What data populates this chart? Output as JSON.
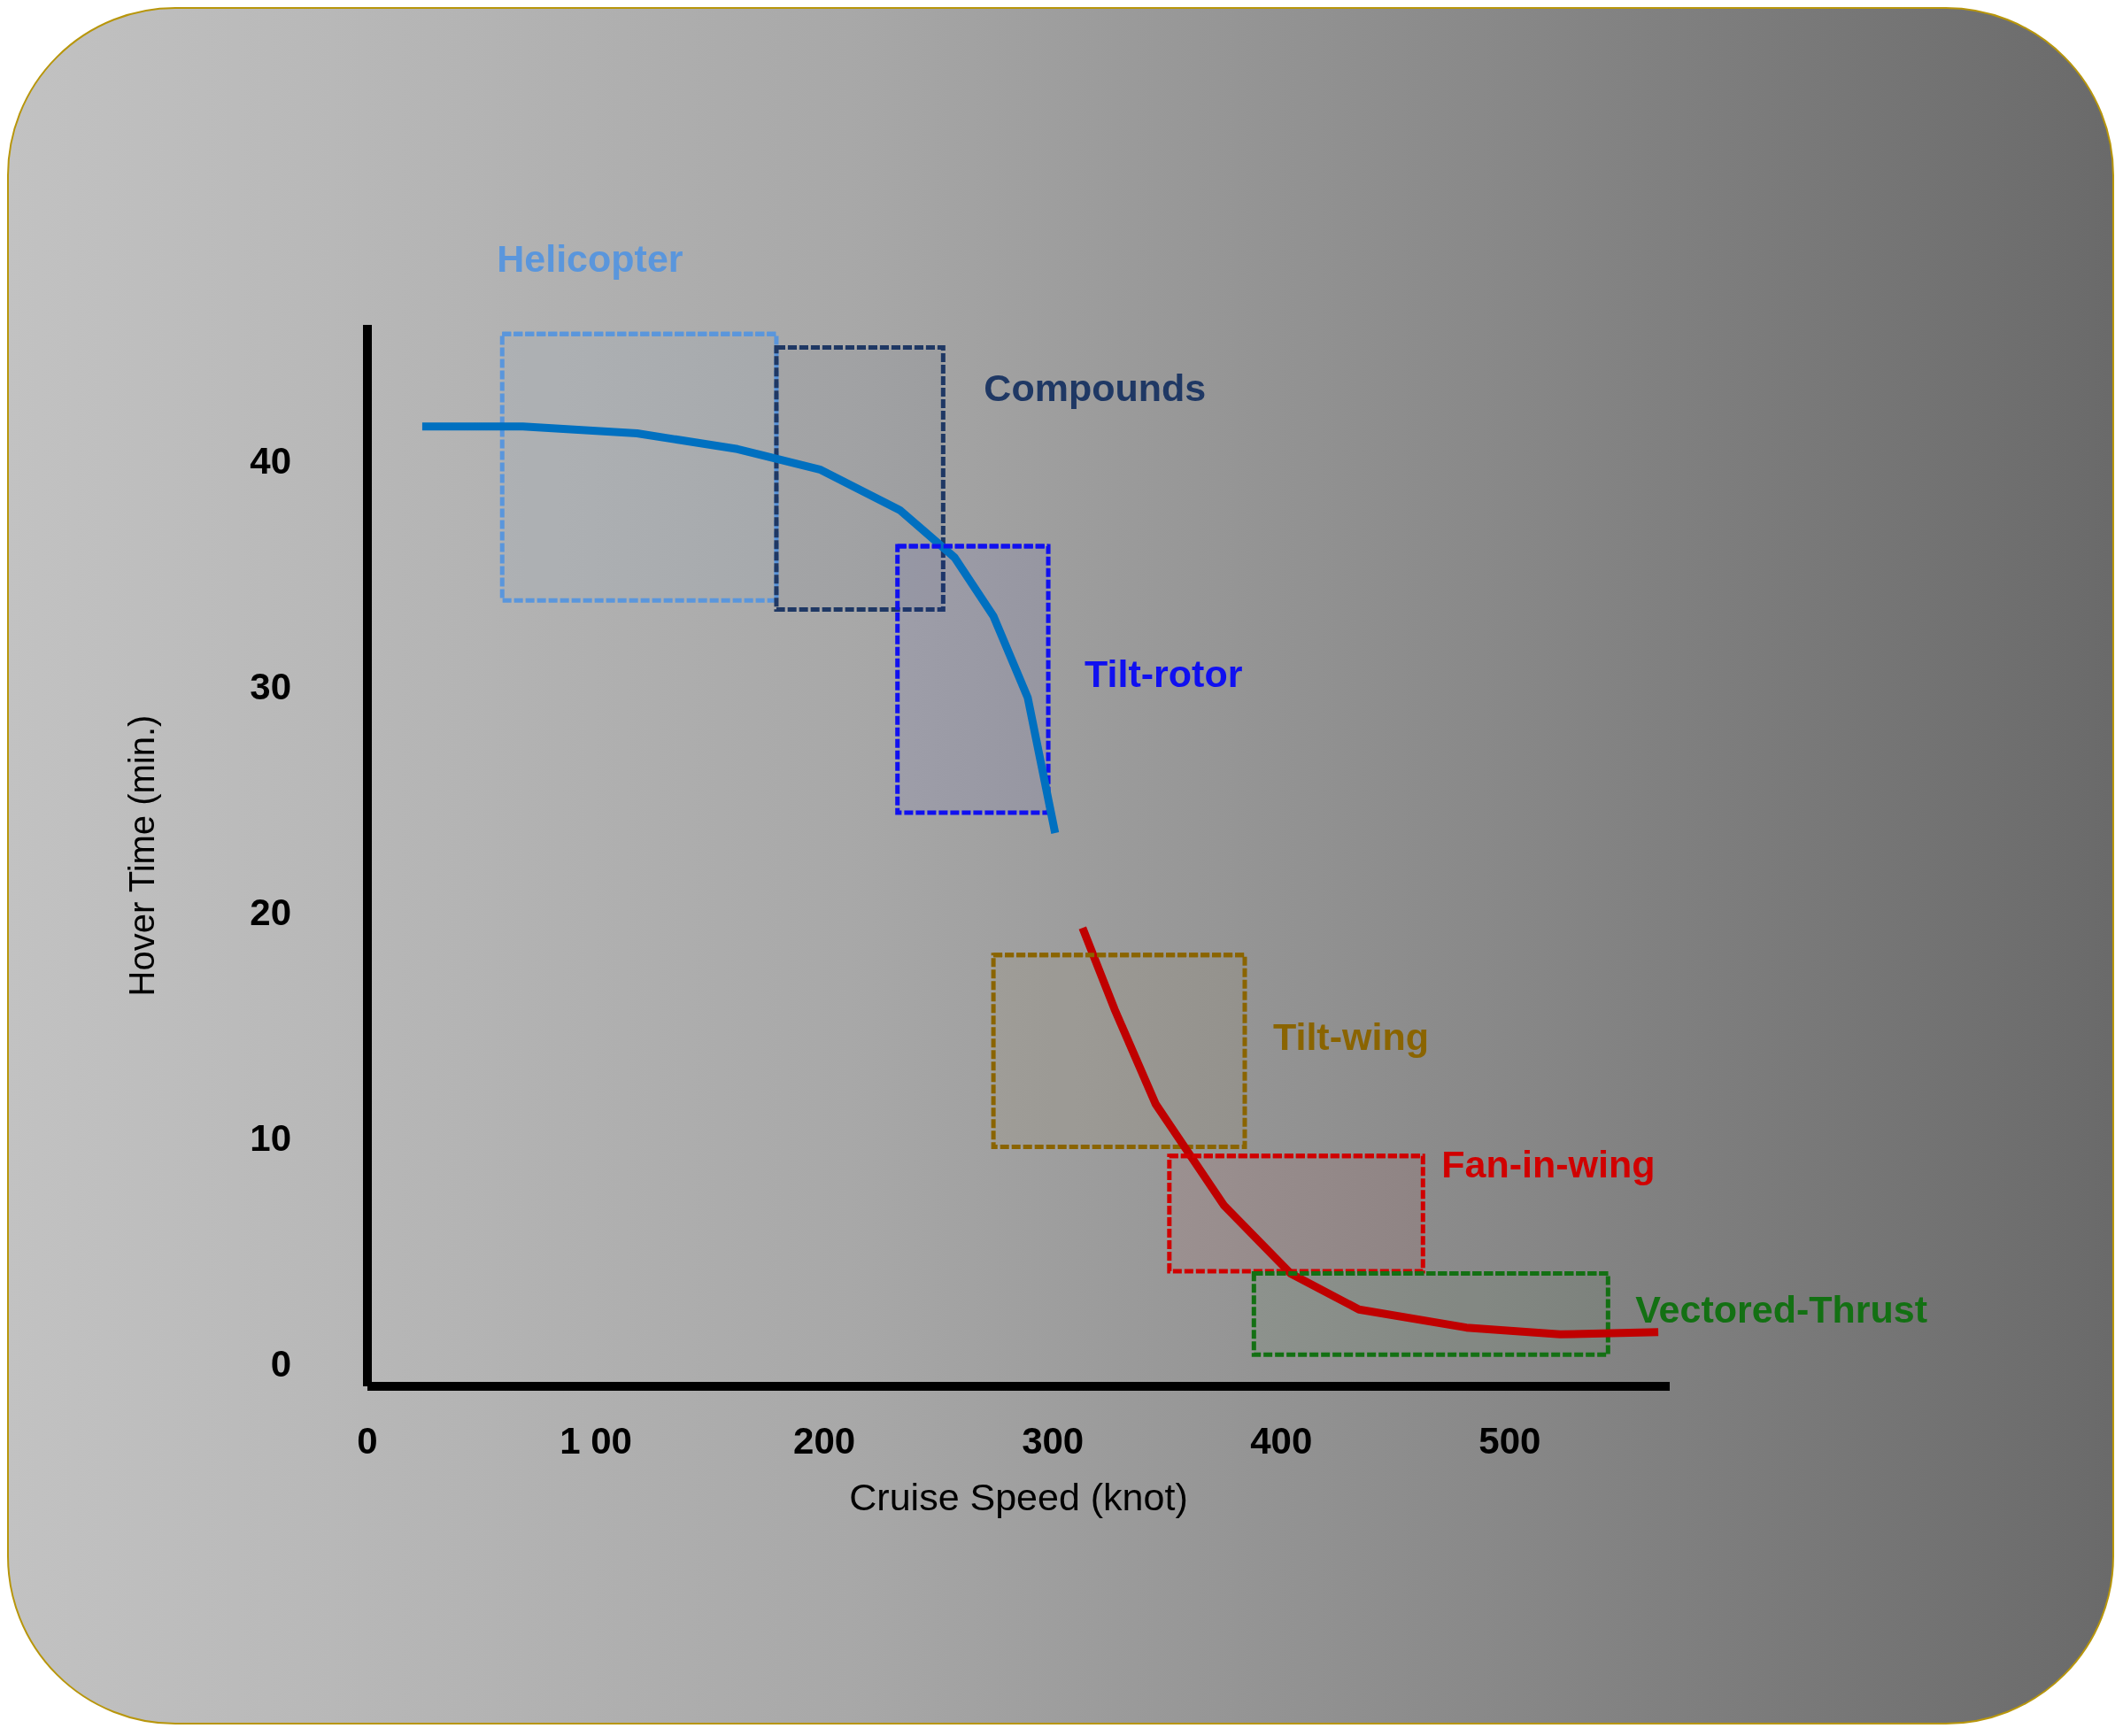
{
  "chart_data": {
    "type": "line",
    "xlabel": "Cruise Speed (knot)",
    "ylabel": "Hover Time (min.)",
    "xlim": [
      0,
      570
    ],
    "ylim": [
      -1,
      46
    ],
    "xticks": [
      0,
      {
        "value": 100,
        "label": "1 00"
      },
      200,
      300,
      400,
      500
    ],
    "yticks": [
      0,
      10,
      20,
      30,
      40
    ],
    "grid": false,
    "legend": false,
    "series": [
      {
        "type": "line",
        "color": "#0070c0",
        "line_style": "solid",
        "x": [
          24,
          68,
          118,
          162,
          198,
          233,
          257,
          274,
          289,
          301
        ],
        "values": [
          41.5,
          41.5,
          41.2,
          40.5,
          39.6,
          37.8,
          35.7,
          33.1,
          29.5,
          23.5
        ]
      },
      {
        "type": "line",
        "color": "#c00000",
        "line_style": "solid",
        "x": [
          313,
          327,
          345,
          375,
          404,
          434,
          481,
          522,
          565
        ],
        "values": [
          19.3,
          15.7,
          11.5,
          7.0,
          4.0,
          2.4,
          1.6,
          1.3,
          1.4
        ]
      },
      {
        "type": "line",
        "name": "Helicopter",
        "color": "#5a96dc",
        "line_style": "dashed",
        "x": [
          59,
          179
        ],
        "values": [
          45.6,
          45.6
        ],
        "lower": [
          33.8,
          33.8
        ],
        "upper": [
          45.6,
          45.6
        ]
      },
      {
        "type": "line",
        "name": "Compounds",
        "color": "#1f3864",
        "line_style": "dashed",
        "x": [
          179,
          252
        ],
        "values": [
          45.0,
          45.0
        ],
        "lower": [
          33.4,
          33.4
        ],
        "upper": [
          45.0,
          45.0
        ]
      },
      {
        "type": "line",
        "name": "Tilt-rotor",
        "color": "#1010f0",
        "line_style": "dashed",
        "x": [
          232,
          298
        ],
        "values": [
          36.2,
          36.2
        ],
        "lower": [
          24.4,
          24.4
        ],
        "upper": [
          36.2,
          36.2
        ]
      },
      {
        "type": "line",
        "name": "Tilt-wing",
        "color": "#8a6400",
        "line_style": "dashed",
        "x": [
          274,
          384
        ],
        "values": [
          18.1,
          18.1
        ],
        "lower": [
          9.6,
          9.6
        ],
        "upper": [
          18.1,
          18.1
        ]
      },
      {
        "type": "line",
        "name": "Fan-in-wing",
        "color": "#d00000",
        "line_style": "dashed",
        "x": [
          351,
          462
        ],
        "values": [
          9.2,
          9.2
        ],
        "lower": [
          4.1,
          4.1
        ],
        "upper": [
          9.2,
          9.2
        ]
      },
      {
        "type": "line",
        "name": "Vectored-Thrust",
        "color": "#137013",
        "line_style": "dashed",
        "x": [
          388,
          543
        ],
        "values": [
          4.0,
          4.0
        ],
        "lower": [
          0.4,
          0.4
        ],
        "upper": [
          4.0,
          4.0
        ]
      }
    ]
  }
}
